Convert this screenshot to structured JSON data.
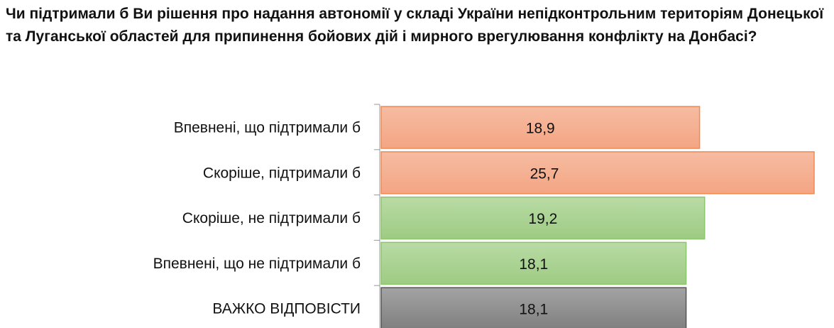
{
  "chart_data": {
    "type": "bar",
    "orientation": "horizontal",
    "title": "Чи підтримали б Ви рішення про надання автономії у складі України непідконтрольним територіям Донецької та Луганської областей для припинення бойових дій і мирного врегулювання конфлікту на Донбасі?",
    "categories": [
      "Впевнені, що підтримали б",
      "Скоріше, підтримали б",
      "Скоріше, не підтримали б",
      "Впевнені, що не підтримали б",
      "ВАЖКО ВІДПОВІСТИ"
    ],
    "values": [
      18.9,
      25.7,
      19.2,
      18.1,
      18.1
    ],
    "value_labels": [
      "18,9",
      "25,7",
      "19,2",
      "18,1",
      "18,1"
    ],
    "colors": [
      "#f4a582",
      "#f4a582",
      "#a9d18e",
      "#a9d18e",
      "#8c8c8c"
    ],
    "xlim": [
      0,
      25.7
    ],
    "grid": false,
    "legend": "none"
  }
}
